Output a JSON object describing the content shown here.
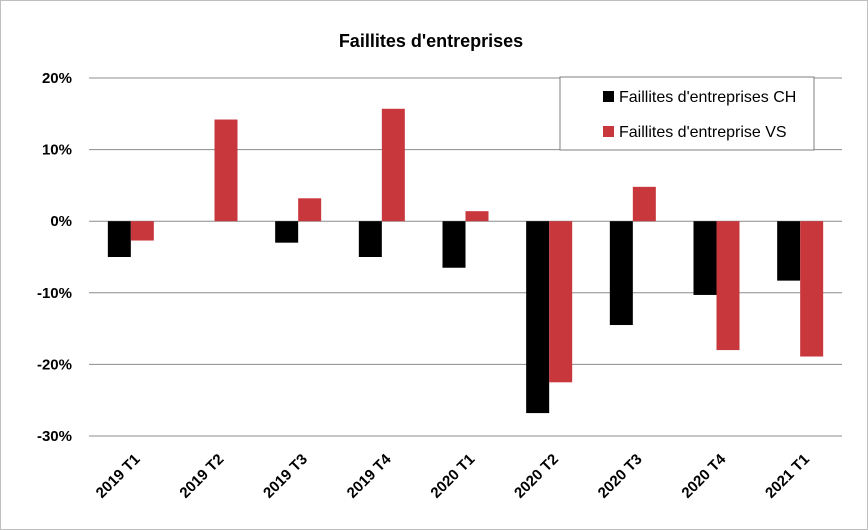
{
  "chart_data": {
    "type": "bar",
    "title": "Faillites d'entreprises",
    "categories": [
      "2019 T1",
      "2019 T2",
      "2019 T3",
      "2019 T4",
      "2020 T1",
      "2020 T2",
      "2020 T3",
      "2020 T4",
      "2021 T1"
    ],
    "series": [
      {
        "name": "Faillites d'entreprises CH",
        "color": "#000000",
        "values": [
          -5.0,
          0.0,
          -3.0,
          -5.0,
          -6.5,
          -26.8,
          -14.5,
          -10.3,
          -8.3
        ]
      },
      {
        "name": "Faillites d'entreprise VS",
        "color": "#c8373c",
        "values": [
          -2.7,
          14.2,
          3.2,
          15.7,
          1.4,
          -22.5,
          4.8,
          -18.0,
          -18.9
        ]
      }
    ],
    "yticks": [
      20,
      10,
      0,
      -10,
      -20,
      -30
    ],
    "ytick_labels": [
      "20%",
      "10%",
      "0%",
      "-10%",
      "-20%",
      "-30%"
    ],
    "ylim": [
      -30,
      20
    ],
    "xlabel": "",
    "ylabel": "",
    "grid": true,
    "legend": "top-right"
  }
}
